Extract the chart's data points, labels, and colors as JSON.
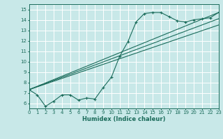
{
  "xlabel": "Humidex (Indice chaleur)",
  "bg_color": "#c8e8e8",
  "grid_color": "#ffffff",
  "line_color": "#1a6b5a",
  "xlim": [
    0,
    23
  ],
  "ylim": [
    5.5,
    15.5
  ],
  "yticks": [
    6,
    7,
    8,
    9,
    10,
    11,
    12,
    13,
    14,
    15
  ],
  "xticks": [
    0,
    1,
    2,
    3,
    4,
    5,
    6,
    7,
    8,
    9,
    10,
    11,
    12,
    13,
    14,
    15,
    16,
    17,
    18,
    19,
    20,
    21,
    22,
    23
  ],
  "main_x": [
    0,
    1,
    2,
    3,
    4,
    5,
    6,
    7,
    8,
    9,
    10,
    11,
    12,
    13,
    14,
    15,
    16,
    17,
    18,
    19,
    20,
    21,
    22,
    23
  ],
  "main_y": [
    7.3,
    6.8,
    5.7,
    6.2,
    6.8,
    6.8,
    6.3,
    6.5,
    6.4,
    7.5,
    8.5,
    10.5,
    11.9,
    13.8,
    14.6,
    14.7,
    14.7,
    14.3,
    13.9,
    13.8,
    14.0,
    14.1,
    14.2,
    14.7
  ],
  "trend1_x": [
    0,
    23
  ],
  "trend1_y": [
    7.3,
    13.5
  ],
  "trend2_x": [
    0,
    23
  ],
  "trend2_y": [
    7.3,
    14.1
  ],
  "trend3_x": [
    0,
    23
  ],
  "trend3_y": [
    7.3,
    14.7
  ],
  "lw": 0.8,
  "ms": 2.5
}
